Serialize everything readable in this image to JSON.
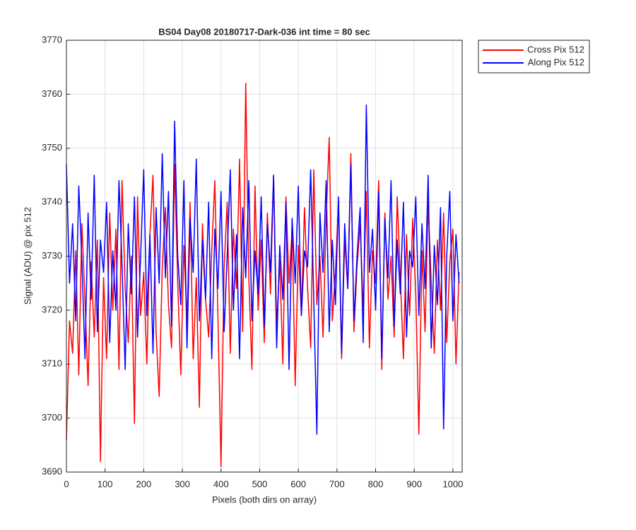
{
  "chart_data": {
    "type": "line",
    "title": "BS04 Day08 20180717-Dark-036 int time = 80 sec",
    "xlabel": "Pixels (both dirs on array)",
    "ylabel": "Signal (ADU) @ pix 512",
    "x": [
      0,
      8,
      16,
      24,
      32,
      40,
      48,
      56,
      64,
      72,
      80,
      88,
      96,
      104,
      112,
      120,
      128,
      136,
      144,
      152,
      160,
      168,
      176,
      184,
      192,
      200,
      208,
      216,
      224,
      232,
      240,
      248,
      256,
      264,
      272,
      280,
      288,
      296,
      304,
      312,
      320,
      328,
      336,
      344,
      352,
      360,
      368,
      376,
      384,
      392,
      400,
      408,
      416,
      424,
      432,
      440,
      448,
      456,
      464,
      472,
      480,
      488,
      496,
      504,
      512,
      520,
      528,
      536,
      544,
      552,
      560,
      568,
      576,
      584,
      592,
      600,
      608,
      616,
      624,
      632,
      640,
      648,
      656,
      664,
      672,
      680,
      688,
      696,
      704,
      712,
      720,
      728,
      736,
      744,
      752,
      760,
      768,
      776,
      784,
      792,
      800,
      808,
      816,
      824,
      832,
      840,
      848,
      856,
      864,
      872,
      880,
      888,
      896,
      904,
      912,
      920,
      928,
      936,
      944,
      952,
      960,
      968,
      976,
      984,
      992,
      1000,
      1008,
      1016
    ],
    "series": [
      {
        "name": "Cross Pix 512",
        "color": "#ff0000",
        "values": [
          3696,
          3718,
          3712,
          3731,
          3708,
          3736,
          3722,
          3706,
          3729,
          3715,
          3733,
          3692,
          3726,
          3711,
          3738,
          3720,
          3735,
          3709,
          3744,
          3724,
          3714,
          3730,
          3699,
          3741,
          3719,
          3727,
          3710,
          3734,
          3745,
          3716,
          3704,
          3728,
          3739,
          3721,
          3713,
          3747,
          3725,
          3708,
          3732,
          3718,
          3740,
          3711,
          3726,
          3702,
          3736,
          3722,
          3715,
          3731,
          3744,
          3719,
          3691,
          3728,
          3740,
          3712,
          3735,
          3724,
          3748,
          3716,
          3762,
          3726,
          3709,
          3743,
          3720,
          3733,
          3714,
          3738,
          3723,
          3745,
          3717,
          3729,
          3710,
          3741,
          3725,
          3735,
          3706,
          3732,
          3719,
          3739,
          3724,
          3713,
          3746,
          3721,
          3730,
          3715,
          3737,
          3752,
          3718,
          3727,
          3740,
          3711,
          3733,
          3724,
          3749,
          3716,
          3728,
          3736,
          3720,
          3742,
          3713,
          3731,
          3725,
          3744,
          3709,
          3738,
          3722,
          3730,
          3715,
          3741,
          3726,
          3711,
          3734,
          3719,
          3737,
          3723,
          3697,
          3731,
          3716,
          3740,
          3725,
          3712,
          3733,
          3720,
          3738,
          3714,
          3729,
          3735,
          3710,
          3727
        ]
      },
      {
        "name": "Along Pix 512",
        "color": "#0000ff",
        "values": [
          3747,
          3725,
          3736,
          3718,
          3743,
          3729,
          3711,
          3738,
          3722,
          3745,
          3716,
          3733,
          3727,
          3740,
          3714,
          3731,
          3720,
          3744,
          3728,
          3709,
          3736,
          3723,
          3741,
          3715,
          3730,
          3746,
          3719,
          3734,
          3712,
          3739,
          3725,
          3749,
          3726,
          3742,
          3717,
          3755,
          3730,
          3721,
          3744,
          3713,
          3737,
          3727,
          3748,
          3718,
          3733,
          3722,
          3740,
          3711,
          3735,
          3724,
          3742,
          3716,
          3730,
          3746,
          3720,
          3734,
          3711,
          3739,
          3726,
          3744,
          3718,
          3731,
          3723,
          3741,
          3717,
          3736,
          3727,
          3745,
          3713,
          3732,
          3722,
          3740,
          3709,
          3737,
          3725,
          3743,
          3719,
          3731,
          3728,
          3746,
          3722,
          3697,
          3738,
          3727,
          3744,
          3716,
          3733,
          3721,
          3741,
          3712,
          3736,
          3724,
          3747,
          3718,
          3730,
          3739,
          3714,
          3758,
          3727,
          3735,
          3720,
          3742,
          3711,
          3737,
          3726,
          3744,
          3717,
          3733,
          3723,
          3740,
          3715,
          3731,
          3728,
          3741,
          3719,
          3736,
          3724,
          3745,
          3713,
          3732,
          3721,
          3739,
          3698,
          3730,
          3742,
          3718,
          3734,
          3725
        ]
      }
    ],
    "xlim": [
      0,
      1024
    ],
    "xticks": [
      0,
      100,
      200,
      300,
      400,
      500,
      600,
      700,
      800,
      900,
      1000
    ],
    "ylim": [
      3690,
      3770
    ],
    "yticks": [
      3690,
      3700,
      3710,
      3720,
      3730,
      3740,
      3750,
      3760,
      3770
    ],
    "grid": true,
    "legend": "outside-top-right"
  }
}
